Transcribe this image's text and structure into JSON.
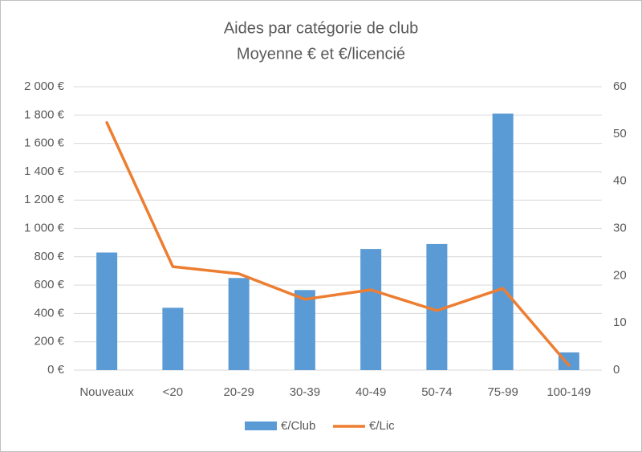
{
  "chart_data": {
    "type": "bar",
    "title": "Aides par catégorie de club",
    "subtitle": "Moyenne € et €/licencié",
    "categories": [
      "Nouveaux",
      "<20",
      "20-29",
      "30-39",
      "40-49",
      "50-74",
      "75-99",
      "100-149"
    ],
    "series": [
      {
        "name": "€/Club",
        "type": "bar",
        "color": "#5b9bd5",
        "values": [
          830,
          440,
          650,
          565,
          855,
          890,
          1810,
          125
        ]
      },
      {
        "name": "€/Lic",
        "type": "line",
        "axis": "y2",
        "color": "#ed7d31",
        "values": [
          52.4,
          21.9,
          20.4,
          15.0,
          17.0,
          12.6,
          17.3,
          1.0
        ]
      }
    ],
    "ylim": [
      0,
      2000
    ],
    "yticks": [
      {
        "value": 0,
        "label": "0 €"
      },
      {
        "value": 200,
        "label": "200 €"
      },
      {
        "value": 400,
        "label": "400 €"
      },
      {
        "value": 600,
        "label": "600 €"
      },
      {
        "value": 800,
        "label": "800 €"
      },
      {
        "value": 1000,
        "label": "1 000 €"
      },
      {
        "value": 1200,
        "label": "1 200 €"
      },
      {
        "value": 1400,
        "label": "1 400 €"
      },
      {
        "value": 1600,
        "label": "1 600 €"
      },
      {
        "value": 1800,
        "label": "1 800 €"
      },
      {
        "value": 2000,
        "label": "2 000 €"
      }
    ],
    "y2lim": [
      0,
      60
    ],
    "y2ticks": [
      0,
      10,
      20,
      30,
      40,
      50,
      60
    ],
    "grid": true,
    "legend": "bottom"
  }
}
